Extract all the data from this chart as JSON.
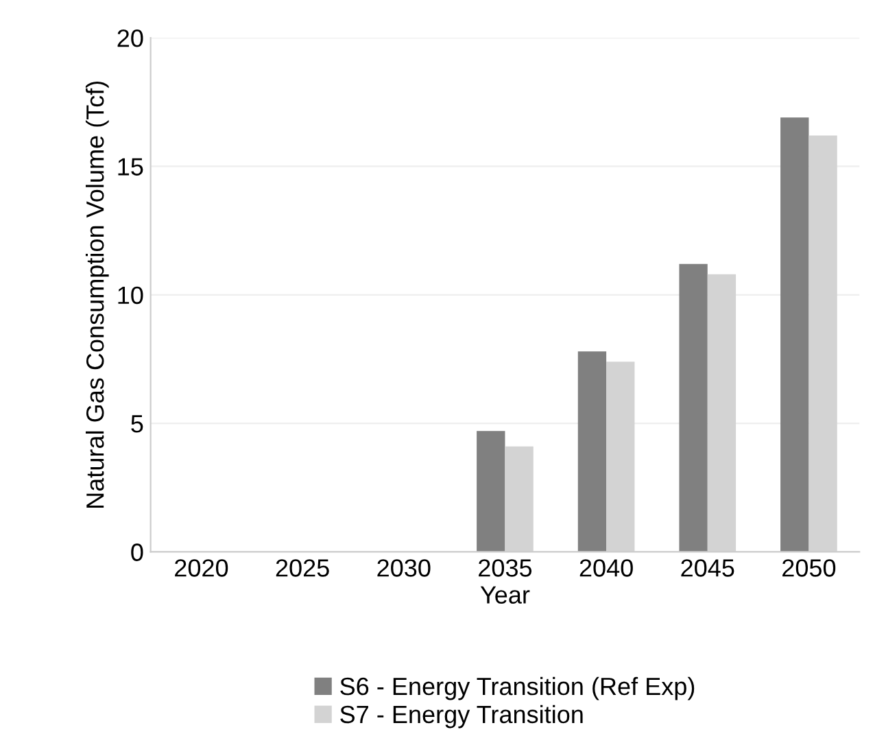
{
  "chart_data": {
    "type": "bar",
    "xlabel": "Year",
    "ylabel": "Natural Gas Consumption Volume (Tcf)",
    "categories": [
      "2020",
      "2025",
      "2030",
      "2035",
      "2040",
      "2045",
      "2050"
    ],
    "series": [
      {
        "name": "S6 - Energy Transition (Ref Exp)",
        "color": "#808080",
        "values": [
          null,
          null,
          null,
          4.7,
          7.8,
          11.2,
          16.9
        ]
      },
      {
        "name": "S7 - Energy Transition",
        "color": "#d3d3d3",
        "values": [
          null,
          null,
          null,
          4.1,
          7.4,
          10.8,
          16.2
        ]
      }
    ],
    "ylim": [
      0,
      20
    ],
    "yticks": [
      0,
      5,
      10,
      15,
      20
    ],
    "grid": "y",
    "legend": "bottom"
  }
}
